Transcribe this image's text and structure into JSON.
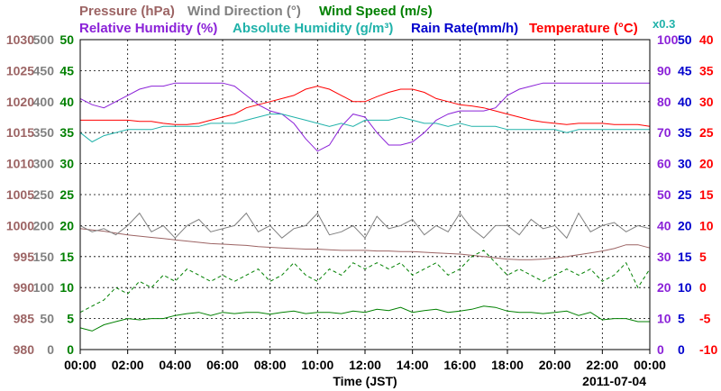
{
  "chart_data": {
    "type": "line",
    "date": "2011-07-04",
    "xlabel": "Time (JST)",
    "x_ticks": [
      "00:00",
      "02:00",
      "04:00",
      "06:00",
      "08:00",
      "10:00",
      "12:00",
      "14:00",
      "16:00",
      "18:00",
      "20:00",
      "22:00",
      "00:00"
    ],
    "x_hours": [
      0,
      0.5,
      1,
      1.5,
      2,
      2.5,
      3,
      3.5,
      4,
      4.5,
      5,
      5.5,
      6,
      6.5,
      7,
      7.5,
      8,
      8.5,
      9,
      9.5,
      10,
      10.5,
      11,
      11.5,
      12,
      12.5,
      13,
      13.5,
      14,
      14.5,
      15,
      15.5,
      16,
      16.5,
      17,
      17.5,
      18,
      18.5,
      19,
      19.5,
      20,
      20.5,
      21,
      21.5,
      22,
      22.5,
      23,
      23.5,
      24
    ],
    "legend_row1": [
      {
        "text": "Pressure (hPa)",
        "color": "#9c6464"
      },
      {
        "text": "Wind Direction (°)",
        "color": "#808080"
      },
      {
        "text": "Wind Speed (m/s)",
        "color": "#008000"
      }
    ],
    "legend_row2": [
      {
        "text": "Relative Humidity (%)",
        "color": "#8b22d8"
      },
      {
        "text": "Absolute Humidity (g/m³)",
        "color": "#20b2aa"
      },
      {
        "text": "Rain Rate(mm/h)",
        "color": "#0000cd"
      },
      {
        "text": "Temperature (°C)",
        "color": "#ff0000"
      },
      {
        "text": "x0.3",
        "color": "#20b2aa"
      }
    ],
    "axes": {
      "pressure": {
        "color": "#9c6464",
        "range": [
          980,
          1030
        ],
        "ticks": [
          "980",
          "985",
          "990",
          "995",
          "1000",
          "1005",
          "1010",
          "1015",
          "1020",
          "1025",
          "1030"
        ]
      },
      "wind_direction": {
        "color": "#808080",
        "range": [
          0,
          500
        ],
        "ticks": [
          "0",
          "50",
          "100",
          "150",
          "200",
          "250",
          "300",
          "350",
          "400",
          "450",
          "500"
        ]
      },
      "wind_speed": {
        "color": "#008000",
        "range": [
          0,
          50
        ],
        "ticks": [
          "0",
          "5",
          "10",
          "15",
          "20",
          "25",
          "30",
          "35",
          "40",
          "45",
          "50"
        ]
      },
      "relative_humidity": {
        "color": "#8b22d8",
        "range": [
          0,
          100
        ],
        "ticks": [
          "0",
          "10",
          "20",
          "30",
          "40",
          "50",
          "60",
          "70",
          "80",
          "90",
          "100"
        ]
      },
      "rain_rate": {
        "color": "#0000cd",
        "range": [
          0,
          50
        ],
        "ticks": [
          "0",
          "5",
          "10",
          "15",
          "20",
          "25",
          "30",
          "35",
          "40",
          "45",
          "50"
        ]
      },
      "temperature": {
        "color": "#ff0000",
        "range": [
          -10,
          40
        ],
        "ticks": [
          "-10",
          "-5",
          "0",
          "5",
          "10",
          "15",
          "20",
          "25",
          "30",
          "35",
          "40"
        ]
      }
    },
    "grid": true,
    "series": [
      {
        "name": "Relative Humidity (%)",
        "axis": "relative_humidity",
        "color": "#8b22d8",
        "values": [
          81,
          79,
          78,
          80,
          82,
          84,
          85,
          85,
          86,
          86,
          86,
          86,
          86,
          85,
          82,
          79,
          77,
          76,
          73,
          68,
          64,
          66,
          72,
          76,
          75,
          70,
          66,
          66,
          67,
          70,
          74,
          76,
          77,
          77,
          77,
          78,
          82,
          84,
          85,
          86,
          86,
          86,
          86,
          86,
          86,
          86,
          86,
          86,
          86
        ]
      },
      {
        "name": "Absolute Humidity (g/m³) x0.3",
        "axis": "relative_humidity",
        "color": "#20b2aa",
        "values": [
          70,
          67,
          69,
          70,
          71,
          71,
          71,
          72,
          72,
          72,
          72,
          73,
          73,
          73,
          74,
          75,
          76,
          76,
          75,
          74,
          73,
          72,
          73,
          72,
          74,
          74,
          74,
          75,
          74,
          73,
          73,
          72,
          73,
          72,
          72,
          72,
          71,
          71,
          71,
          71,
          71,
          70,
          71,
          71,
          71,
          71,
          71,
          71,
          71
        ]
      },
      {
        "name": "Temperature (°C)",
        "axis": "temperature",
        "color": "#ff0000",
        "values": [
          27,
          27,
          27,
          27,
          27,
          26.8,
          26.8,
          26.5,
          26.3,
          26.3,
          26.5,
          27,
          27.5,
          28,
          29,
          29.5,
          30,
          30.5,
          31,
          32,
          32.5,
          32,
          31,
          30,
          30,
          30.8,
          31.5,
          32,
          32,
          31.5,
          30.5,
          30,
          29.5,
          29.3,
          29,
          28.5,
          28,
          27.5,
          27,
          26.7,
          26.5,
          26.3,
          26.5,
          26.5,
          26.5,
          26.3,
          26.3,
          26.3,
          26
        ]
      },
      {
        "name": "Pressure (hPa)",
        "axis": "pressure",
        "color": "#9c6464",
        "values": [
          999.5,
          999.3,
          999.1,
          998.8,
          998.5,
          998.3,
          998.1,
          997.9,
          997.7,
          997.5,
          997.3,
          997.1,
          997,
          996.9,
          996.8,
          996.6,
          996.5,
          996.4,
          996.3,
          996.2,
          996.2,
          996.1,
          996,
          996,
          996,
          995.9,
          995.9,
          995.8,
          995.8,
          995.7,
          995.6,
          995.5,
          995.4,
          995.2,
          995,
          994.8,
          994.6,
          994.5,
          994.5,
          994.6,
          994.8,
          995,
          995.3,
          995.6,
          995.9,
          996.3,
          996.9,
          996.9,
          996.4
        ]
      },
      {
        "name": "Wind Direction (°)",
        "axis": "wind_direction",
        "color": "#808080",
        "values": [
          200,
          190,
          195,
          185,
          200,
          220,
          190,
          200,
          180,
          200,
          210,
          190,
          195,
          200,
          220,
          190,
          200,
          180,
          195,
          200,
          220,
          185,
          190,
          200,
          180,
          215,
          195,
          200,
          210,
          185,
          200,
          190,
          220,
          195,
          180,
          200,
          200,
          185,
          210,
          195,
          200,
          180,
          220,
          190,
          200,
          205,
          190,
          200,
          195
        ]
      },
      {
        "name": "Wind Speed max (m/s)",
        "axis": "wind_speed",
        "color": "#008000",
        "dashed": true,
        "values": [
          6,
          7,
          8,
          10,
          9,
          11,
          10,
          12,
          11,
          13,
          12,
          11,
          12,
          11,
          12,
          13,
          11,
          12,
          14,
          12,
          11,
          13,
          12,
          14,
          13,
          14,
          13,
          14,
          12,
          13,
          14,
          12,
          13,
          15,
          16,
          14,
          12,
          13,
          12,
          11,
          12,
          13,
          12,
          13,
          11,
          12,
          14,
          10,
          13
        ]
      },
      {
        "name": "Wind Speed mean (m/s)",
        "axis": "wind_speed",
        "color": "#008000",
        "values": [
          3.5,
          3,
          4,
          4.5,
          5,
          4.8,
          5,
          5,
          5.5,
          5.8,
          6,
          5.5,
          6,
          5.8,
          6,
          6,
          5.7,
          6,
          6.2,
          5.8,
          6,
          6,
          5.8,
          6.2,
          6,
          6.5,
          6.3,
          6.8,
          6,
          6.3,
          6.5,
          6,
          6.2,
          6.5,
          7,
          6.8,
          6.2,
          6,
          6,
          5.8,
          6,
          6.2,
          5.5,
          6,
          4.8,
          5,
          5,
          4.5,
          4.5
        ]
      },
      {
        "name": "Rain Rate (mm/h)",
        "axis": "rain_rate",
        "color": "#0000cd",
        "values": [
          0,
          0,
          0,
          0,
          0,
          0,
          0,
          0,
          0,
          0,
          0,
          0,
          0,
          0,
          0,
          0,
          0,
          0,
          0,
          0,
          0,
          0,
          0,
          0,
          0,
          0,
          0,
          0,
          0,
          0,
          0,
          0,
          0,
          0,
          0,
          0,
          0,
          0,
          0,
          0,
          0,
          0,
          0,
          0,
          0,
          0,
          0,
          0,
          0
        ]
      }
    ]
  }
}
